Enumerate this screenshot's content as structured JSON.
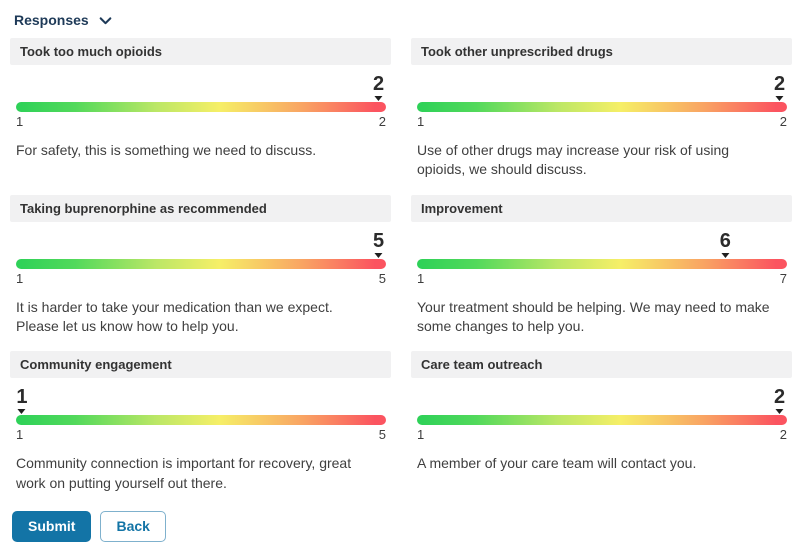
{
  "section": {
    "title": "Responses",
    "chevron_icon": "chevron-down"
  },
  "cards": [
    {
      "title": "Took too much opioids",
      "value": 2,
      "min": 1,
      "max": 2,
      "message": "For safety, this is something we need to discuss."
    },
    {
      "title": "Took other unprescribed drugs",
      "value": 2,
      "min": 1,
      "max": 2,
      "message": "Use of other drugs may increase your risk of using opioids, we should discuss."
    },
    {
      "title": "Taking buprenorphine as recommended",
      "value": 5,
      "min": 1,
      "max": 5,
      "message": "It is harder to take your medication than we expect. Please let us know how to help you."
    },
    {
      "title": "Improvement",
      "value": 6,
      "min": 1,
      "max": 7,
      "message": "Your treatment should be helping. We may need to make some changes to help you."
    },
    {
      "title": "Community engagement",
      "value": 1,
      "min": 1,
      "max": 5,
      "message": "Community connection is important for recovery, great work on putting yourself out there."
    },
    {
      "title": "Care team outreach",
      "value": 2,
      "min": 1,
      "max": 2,
      "message": "A member of your care team will contact you."
    }
  ],
  "actions": {
    "submit_label": "Submit",
    "back_label": "Back"
  },
  "colors": {
    "accent_blue": "#1374a6",
    "heading_navy": "#1e3a58",
    "scale_green": "#2dd158",
    "scale_yellow": "#f6ef67",
    "scale_red": "#fb5460",
    "card_header_bg": "#f1f1f2"
  }
}
